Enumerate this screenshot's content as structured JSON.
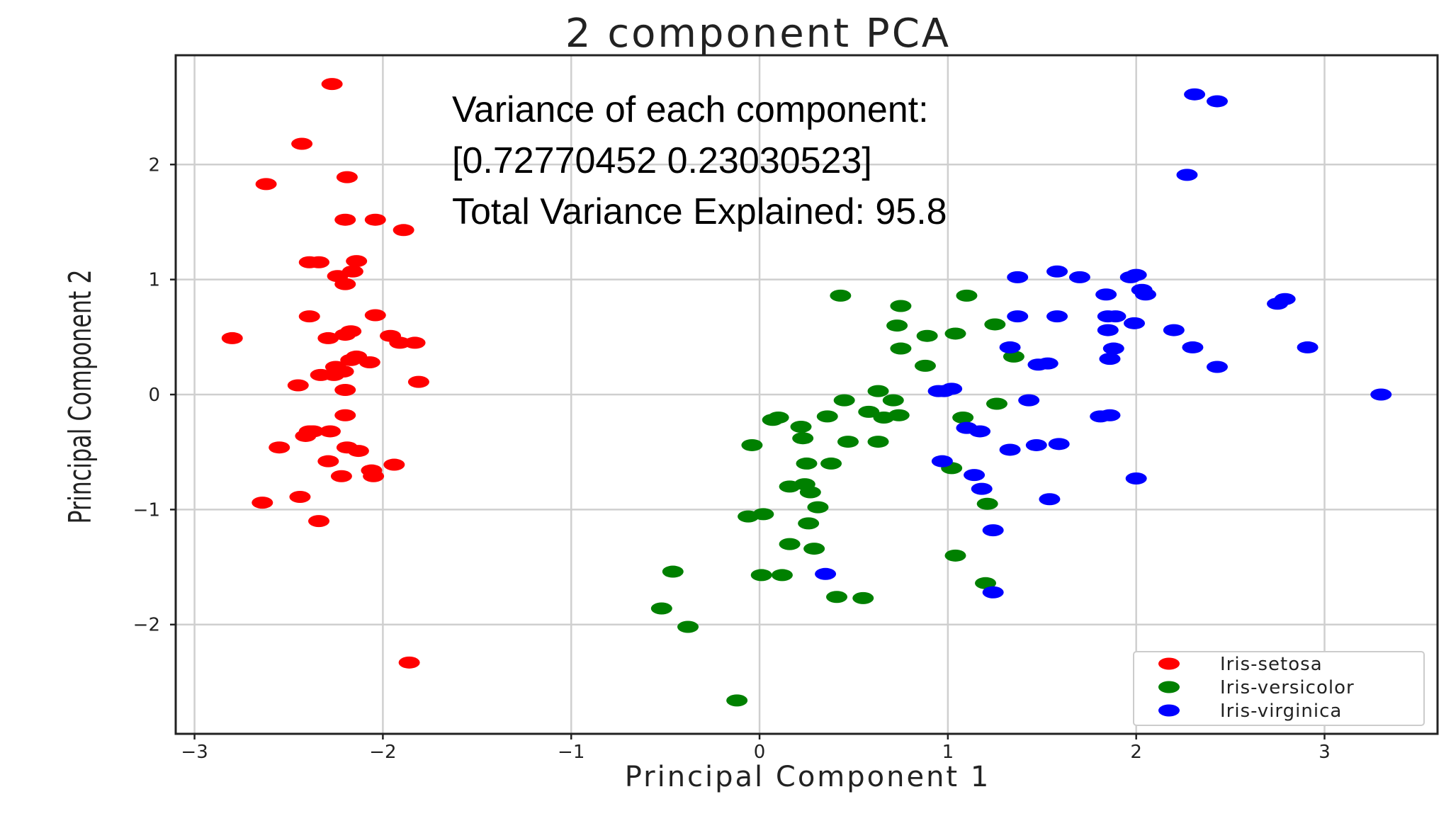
{
  "chart_data": {
    "type": "scatter",
    "title": "2 component PCA",
    "xlabel": "Principal Component 1",
    "ylabel": "Principal Component 2",
    "xlim": [
      -3.1,
      3.6
    ],
    "ylim": [
      -2.95,
      2.95
    ],
    "xticks": [
      -3,
      -2,
      -1,
      0,
      1,
      2,
      3
    ],
    "yticks": [
      -2,
      -1,
      0,
      1,
      2
    ],
    "xtick_labels": [
      "−3",
      "−2",
      "−1",
      "0",
      "1",
      "2",
      "3"
    ],
    "ytick_labels": [
      "−2",
      "−1",
      "0",
      "1",
      "2"
    ],
    "grid": true,
    "legend_position": "bottom-right",
    "annotation": [
      "Variance of each component:",
      "[0.72770452 0.23030523]",
      "Total Variance Explained: 95.8"
    ],
    "series": [
      {
        "name": "Iris-setosa",
        "color": "#ff0000",
        "points": [
          [
            -2.27,
            2.7
          ],
          [
            -2.43,
            2.18
          ],
          [
            -2.62,
            1.83
          ],
          [
            -2.19,
            1.89
          ],
          [
            -2.2,
            1.52
          ],
          [
            -2.04,
            1.52
          ],
          [
            -1.89,
            1.43
          ],
          [
            -2.39,
            1.15
          ],
          [
            -2.34,
            1.15
          ],
          [
            -2.14,
            1.16
          ],
          [
            -2.16,
            1.07
          ],
          [
            -2.24,
            1.03
          ],
          [
            -2.2,
            0.96
          ],
          [
            -2.39,
            0.68
          ],
          [
            -2.04,
            0.69
          ],
          [
            -2.8,
            0.49
          ],
          [
            -2.29,
            0.49
          ],
          [
            -2.2,
            0.52
          ],
          [
            -2.17,
            0.55
          ],
          [
            -1.96,
            0.51
          ],
          [
            -1.91,
            0.45
          ],
          [
            -1.83,
            0.45
          ],
          [
            -2.14,
            0.33
          ],
          [
            -2.17,
            0.3
          ],
          [
            -2.07,
            0.28
          ],
          [
            -2.25,
            0.24
          ],
          [
            -2.21,
            0.2
          ],
          [
            -2.33,
            0.17
          ],
          [
            -2.26,
            0.17
          ],
          [
            -1.81,
            0.11
          ],
          [
            -2.45,
            0.08
          ],
          [
            -2.2,
            0.04
          ],
          [
            -2.39,
            -0.32
          ],
          [
            -2.37,
            -0.32
          ],
          [
            -2.28,
            -0.32
          ],
          [
            -2.41,
            -0.36
          ],
          [
            -2.2,
            -0.18
          ],
          [
            -2.55,
            -0.46
          ],
          [
            -2.19,
            -0.46
          ],
          [
            -2.13,
            -0.49
          ],
          [
            -2.29,
            -0.58
          ],
          [
            -1.94,
            -0.61
          ],
          [
            -2.06,
            -0.66
          ],
          [
            -2.05,
            -0.71
          ],
          [
            -2.22,
            -0.71
          ],
          [
            -2.64,
            -0.94
          ],
          [
            -2.44,
            -0.89
          ],
          [
            -2.34,
            -1.1
          ],
          [
            -1.86,
            -2.33
          ]
        ]
      },
      {
        "name": "Iris-versicolor",
        "color": "#008000",
        "points": [
          [
            0.43,
            0.86
          ],
          [
            1.1,
            0.86
          ],
          [
            0.75,
            0.77
          ],
          [
            0.73,
            0.6
          ],
          [
            1.25,
            0.61
          ],
          [
            0.89,
            0.51
          ],
          [
            1.04,
            0.53
          ],
          [
            0.75,
            0.4
          ],
          [
            1.35,
            0.33
          ],
          [
            0.88,
            0.25
          ],
          [
            0.63,
            0.03
          ],
          [
            0.71,
            -0.05
          ],
          [
            0.45,
            -0.05
          ],
          [
            0.58,
            -0.15
          ],
          [
            0.74,
            -0.18
          ],
          [
            0.66,
            -0.2
          ],
          [
            0.36,
            -0.19
          ],
          [
            0.1,
            -0.2
          ],
          [
            0.07,
            -0.22
          ],
          [
            0.22,
            -0.28
          ],
          [
            0.23,
            -0.38
          ],
          [
            0.47,
            -0.41
          ],
          [
            0.63,
            -0.41
          ],
          [
            1.26,
            -0.08
          ],
          [
            1.08,
            -0.2
          ],
          [
            1.02,
            -0.64
          ],
          [
            0.38,
            -0.6
          ],
          [
            0.25,
            -0.6
          ],
          [
            -0.04,
            -0.44
          ],
          [
            0.16,
            -0.8
          ],
          [
            0.24,
            -0.78
          ],
          [
            0.27,
            -0.85
          ],
          [
            1.21,
            -0.95
          ],
          [
            0.31,
            -0.98
          ],
          [
            -0.06,
            -1.06
          ],
          [
            0.02,
            -1.04
          ],
          [
            0.26,
            -1.12
          ],
          [
            0.16,
            -1.3
          ],
          [
            0.29,
            -1.34
          ],
          [
            1.04,
            -1.4
          ],
          [
            0.01,
            -1.57
          ],
          [
            0.12,
            -1.57
          ],
          [
            -0.46,
            -1.54
          ],
          [
            1.2,
            -1.64
          ],
          [
            0.41,
            -1.76
          ],
          [
            0.55,
            -1.77
          ],
          [
            -0.52,
            -1.86
          ],
          [
            -0.38,
            -2.02
          ],
          [
            -0.12,
            -2.66
          ]
        ]
      },
      {
        "name": "Iris-virginica",
        "color": "#0000ff",
        "points": [
          [
            2.31,
            2.61
          ],
          [
            2.43,
            2.55
          ],
          [
            2.27,
            1.91
          ],
          [
            1.37,
            1.02
          ],
          [
            1.58,
            1.07
          ],
          [
            1.7,
            1.02
          ],
          [
            1.97,
            1.02
          ],
          [
            2.0,
            1.04
          ],
          [
            2.03,
            0.91
          ],
          [
            2.05,
            0.87
          ],
          [
            1.84,
            0.87
          ],
          [
            2.79,
            0.83
          ],
          [
            2.75,
            0.79
          ],
          [
            1.37,
            0.68
          ],
          [
            1.58,
            0.68
          ],
          [
            1.85,
            0.68
          ],
          [
            1.89,
            0.68
          ],
          [
            1.99,
            0.62
          ],
          [
            1.85,
            0.56
          ],
          [
            2.2,
            0.56
          ],
          [
            1.33,
            0.41
          ],
          [
            1.88,
            0.4
          ],
          [
            2.3,
            0.41
          ],
          [
            2.91,
            0.41
          ],
          [
            1.86,
            0.31
          ],
          [
            1.48,
            0.26
          ],
          [
            1.53,
            0.27
          ],
          [
            2.43,
            0.24
          ],
          [
            0.95,
            0.03
          ],
          [
            0.98,
            0.03
          ],
          [
            1.02,
            0.05
          ],
          [
            3.3,
            0.0
          ],
          [
            1.43,
            -0.05
          ],
          [
            1.81,
            -0.19
          ],
          [
            1.86,
            -0.18
          ],
          [
            1.1,
            -0.29
          ],
          [
            1.17,
            -0.32
          ],
          [
            1.33,
            -0.48
          ],
          [
            1.47,
            -0.44
          ],
          [
            1.59,
            -0.43
          ],
          [
            0.97,
            -0.58
          ],
          [
            1.14,
            -0.7
          ],
          [
            1.18,
            -0.82
          ],
          [
            2.0,
            -0.73
          ],
          [
            1.54,
            -0.91
          ],
          [
            1.24,
            -1.18
          ],
          [
            0.35,
            -1.56
          ],
          [
            1.24,
            -1.72
          ]
        ]
      }
    ]
  }
}
